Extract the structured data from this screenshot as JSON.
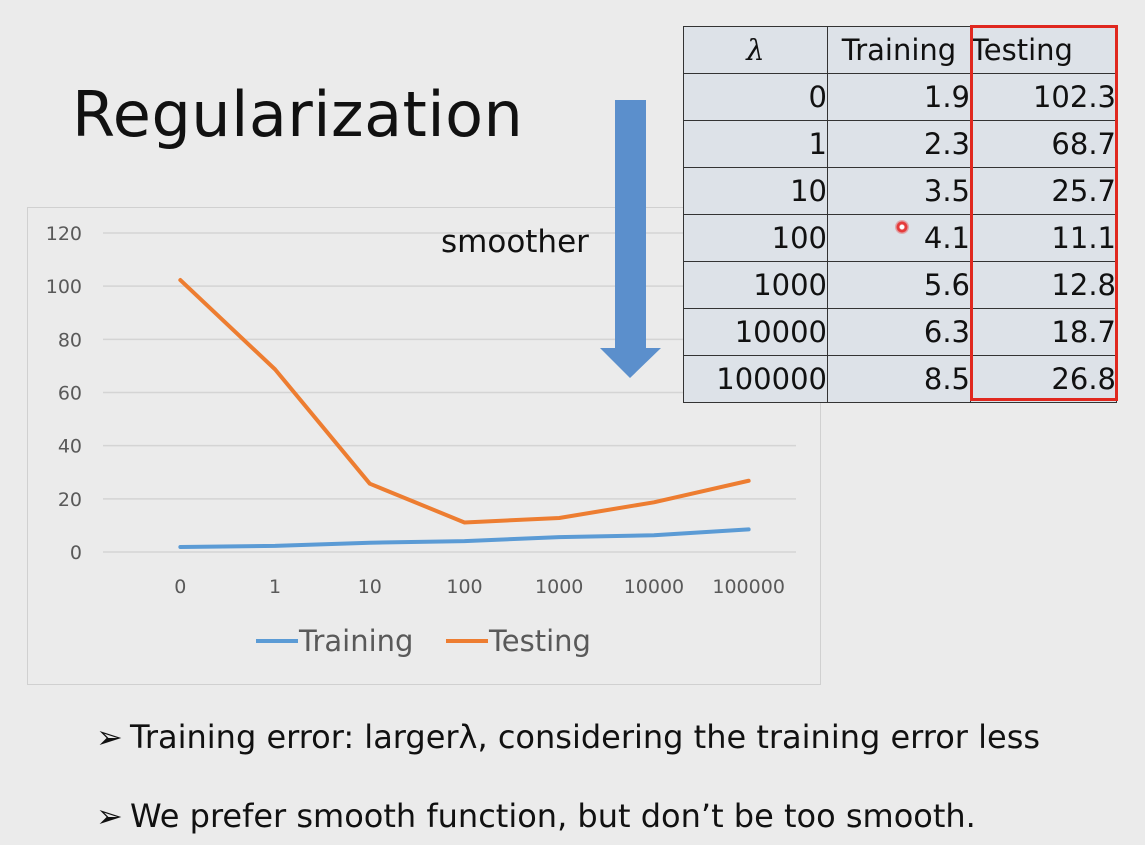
{
  "slide": {
    "title": "Regularization",
    "arrow_label": "smoother",
    "bullets": [
      {
        "marker": "➢",
        "text": "Training error: largerλ, considering the training error less"
      },
      {
        "marker": "➢",
        "text": "We prefer smooth function, but don’t be too smooth."
      }
    ]
  },
  "table": {
    "headers": [
      "λ",
      "Training",
      "Testing"
    ],
    "rows": [
      [
        "0",
        "1.9",
        "102.3"
      ],
      [
        "1",
        "2.3",
        "68.7"
      ],
      [
        "10",
        "3.5",
        "25.7"
      ],
      [
        "100",
        "4.1",
        "11.1"
      ],
      [
        "1000",
        "5.6",
        "12.8"
      ],
      [
        "10000",
        "6.3",
        "18.7"
      ],
      [
        "100000",
        "8.5",
        "26.8"
      ]
    ],
    "highlight_column": "Testing",
    "highlight_color": "#e0281f"
  },
  "chart_data": {
    "type": "line",
    "categories": [
      "0",
      "1",
      "10",
      "100",
      "1000",
      "10000",
      "100000"
    ],
    "series": [
      {
        "name": "Training",
        "color": "#5b9bd5",
        "values": [
          1.9,
          2.3,
          3.5,
          4.1,
          5.6,
          6.3,
          8.5
        ]
      },
      {
        "name": "Testing",
        "color": "#ed7d31",
        "values": [
          102.3,
          68.7,
          25.7,
          11.1,
          12.8,
          18.7,
          26.8
        ]
      }
    ],
    "yticks": [
      0,
      20,
      40,
      60,
      80,
      100,
      120
    ],
    "ylim": [
      0,
      120
    ],
    "grid": true,
    "legend": "bottom"
  },
  "colors": {
    "arrow": "#5b8fcc",
    "grid": "#d4d4d4"
  }
}
